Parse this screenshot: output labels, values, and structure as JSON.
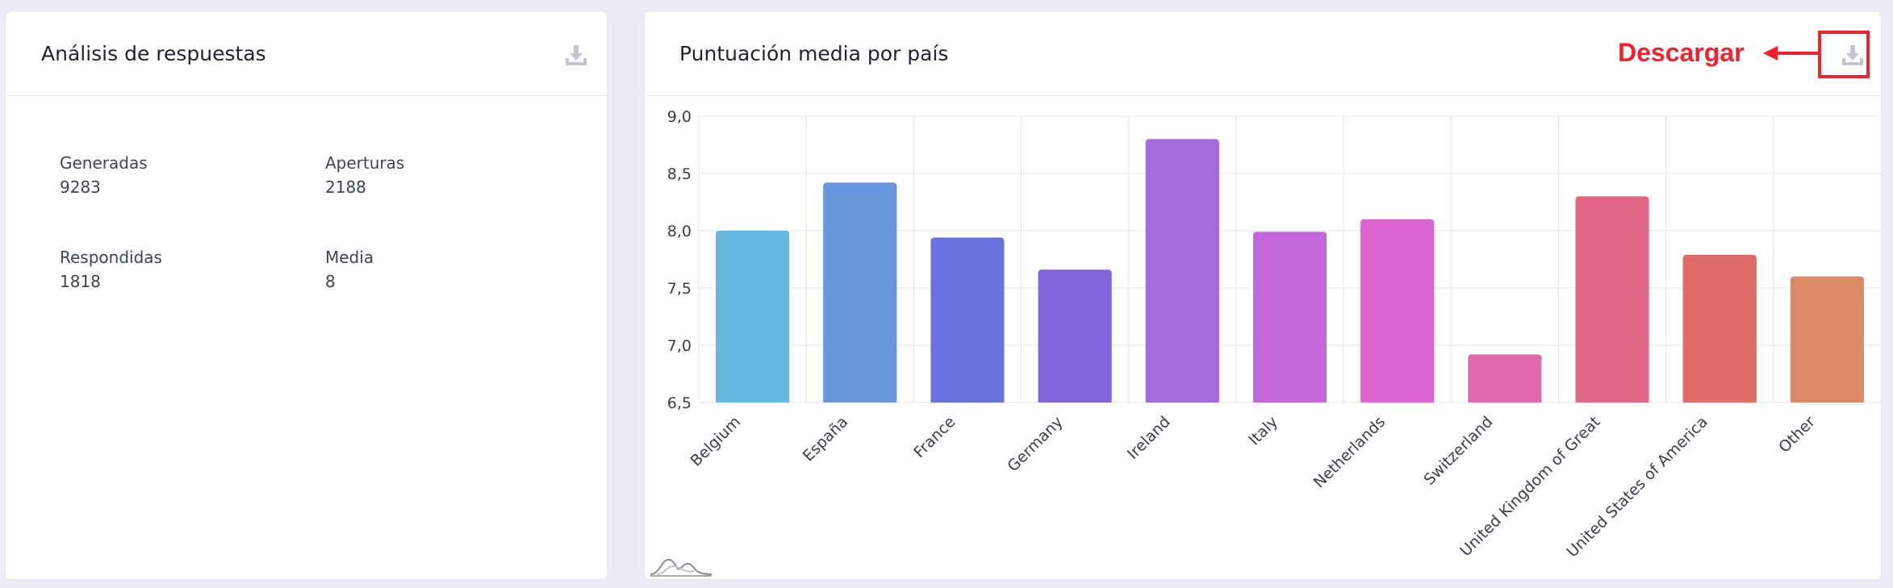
{
  "left_panel": {
    "title": "Análisis de respuestas",
    "download_icon": "download-icon",
    "stats": [
      {
        "label": "Generadas",
        "value": "9283"
      },
      {
        "label": "Aperturas",
        "value": "2188"
      },
      {
        "label": "Respondidas",
        "value": "1818"
      },
      {
        "label": "Media",
        "value": "8"
      }
    ]
  },
  "right_panel": {
    "title": "Puntuación media por país",
    "download_icon": "download-icon",
    "annotation": "Descargar",
    "annotation_color": "#f5202e",
    "footer_icon": "chart-wave-icon"
  },
  "chart_data": {
    "type": "bar",
    "title": "Puntuación media por país",
    "xlabel": "",
    "ylabel": "",
    "categories": [
      "Belgium",
      "España",
      "France",
      "Germany",
      "Ireland",
      "Italy",
      "Netherlands",
      "Switzerland",
      "United Kingdom of Great",
      "United States of America",
      "Other"
    ],
    "values": [
      8.0,
      8.42,
      7.94,
      7.66,
      8.8,
      7.99,
      8.1,
      6.92,
      8.3,
      7.79,
      7.6
    ],
    "colors": [
      "#66b8de",
      "#6895dc",
      "#6a72df",
      "#8466dc",
      "#a66ade",
      "#c467da",
      "#dc66d0",
      "#e06aac",
      "#e06787",
      "#e06a66",
      "#dc8a66"
    ],
    "ylim": [
      6.5,
      9.0
    ],
    "yticks": [
      "9,0",
      "8,5",
      "8,0",
      "7,5",
      "7,0",
      "6,5"
    ],
    "grid": true,
    "legend": "none"
  }
}
